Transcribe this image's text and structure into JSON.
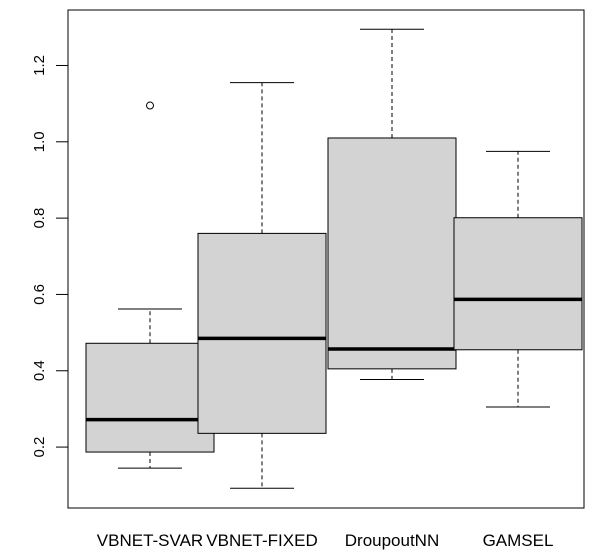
{
  "chart_data": {
    "type": "boxplot",
    "title": "",
    "xlabel": "",
    "ylabel": "",
    "ylim": [
      0.07,
      1.33
    ],
    "y_ticks": [
      0.2,
      0.4,
      0.6,
      0.8,
      1.0,
      1.2
    ],
    "y_tick_labels": [
      "0.2",
      "0.4",
      "0.6",
      "0.8",
      "1.0",
      "1.2"
    ],
    "grid": false,
    "categories": [
      "VBNET-SVAR",
      "VBNET-FIXED",
      "DroupoutNN",
      "GAMSEL"
    ],
    "boxes": [
      {
        "whisker_low": 0.145,
        "q1": 0.187,
        "median": 0.272,
        "q3": 0.472,
        "whisker_high": 0.562,
        "outliers": [
          1.095
        ]
      },
      {
        "whisker_low": 0.092,
        "q1": 0.236,
        "median": 0.485,
        "q3": 0.76,
        "whisker_high": 1.155,
        "outliers": []
      },
      {
        "whisker_low": 0.377,
        "q1": 0.405,
        "median": 0.457,
        "q3": 1.01,
        "whisker_high": 1.295,
        "outliers": []
      },
      {
        "whisker_low": 0.305,
        "q1": 0.455,
        "median": 0.587,
        "q3": 0.801,
        "whisker_high": 0.975,
        "outliers": []
      }
    ],
    "colors": {
      "box_fill": "#d3d3d3",
      "stroke": "#000000"
    }
  }
}
